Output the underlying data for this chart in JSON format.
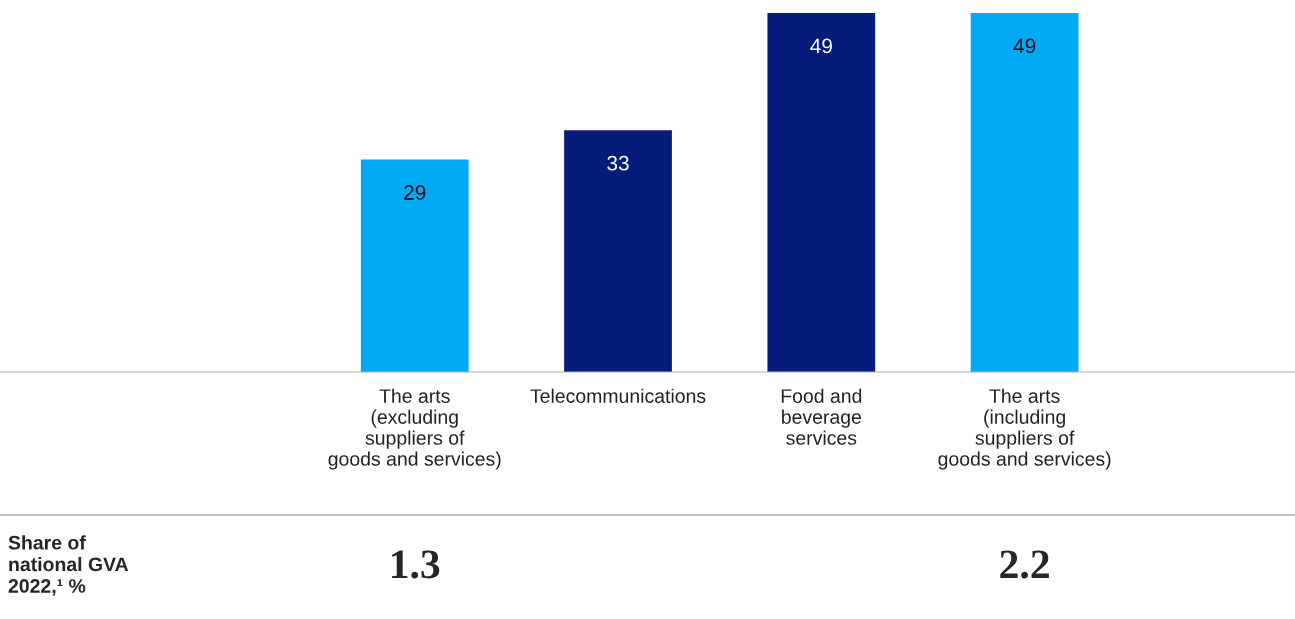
{
  "chart_data": {
    "type": "bar",
    "categories": [
      "The arts\n(excluding\nsuppliers of\ngoods and services)",
      "Telecommunications",
      "Food and\nbeverage\nservices",
      "The arts\n(including\nsuppliers of\ngoods and services)"
    ],
    "values": [
      29,
      33,
      49,
      49
    ],
    "colors": [
      "#00a9f4",
      "#051c7a",
      "#051c7a",
      "#00a9f4"
    ],
    "data_labels": true,
    "annotations": [
      "Share of\nnational GVA\n2022,¹ %",
      "1.3",
      "2.2"
    ]
  }
}
